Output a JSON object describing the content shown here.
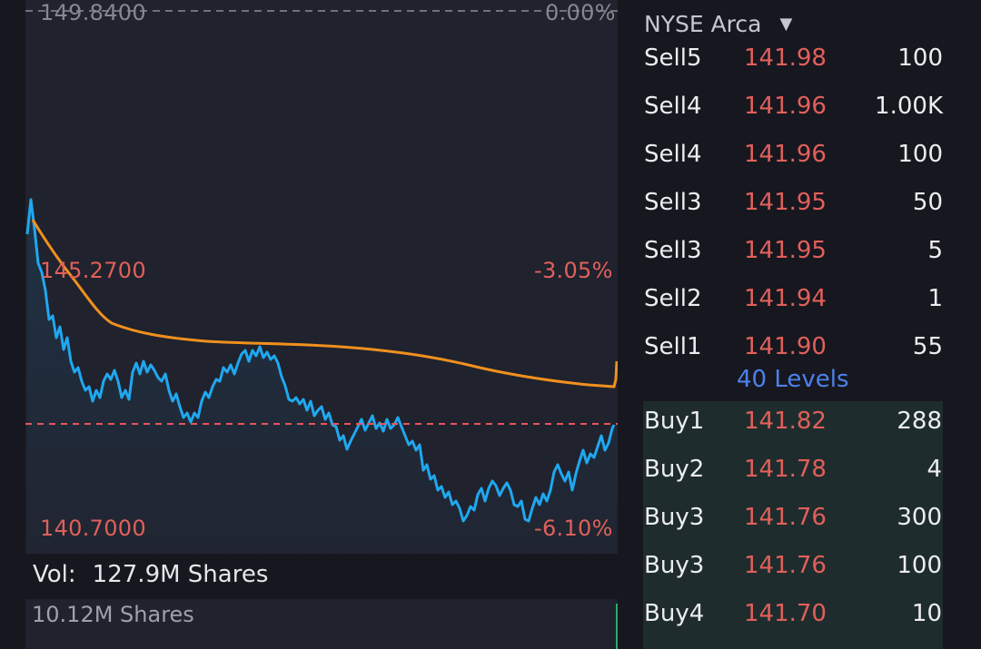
{
  "chart": {
    "ylabels": {
      "top_price": "149.8400",
      "top_pct": "0.00%",
      "mid_price": "145.2700",
      "mid_pct": "-3.05%",
      "low_price": "140.7000",
      "low_pct": "-6.10%"
    },
    "colors": {
      "price_line": "#1fa8f0",
      "avg_line": "#f0901e",
      "ref_line": "#e8555a",
      "down": "#e0605a"
    }
  },
  "volume": {
    "label": "Vol:",
    "value": "127.9M Shares",
    "sub_value": "10.12M Shares"
  },
  "order_book": {
    "exchange": "NYSE Arca",
    "levels_label": "40 Levels",
    "sells": [
      {
        "side": "Sell5",
        "price": "141.98",
        "qty": "100"
      },
      {
        "side": "Sell4",
        "price": "141.96",
        "qty": "1.00K"
      },
      {
        "side": "Sell4",
        "price": "141.96",
        "qty": "100"
      },
      {
        "side": "Sell3",
        "price": "141.95",
        "qty": "50"
      },
      {
        "side": "Sell3",
        "price": "141.95",
        "qty": "5"
      },
      {
        "side": "Sell2",
        "price": "141.94",
        "qty": "1"
      },
      {
        "side": "Sell1",
        "price": "141.90",
        "qty": "55"
      }
    ],
    "buys": [
      {
        "side": "Buy1",
        "price": "141.82",
        "qty": "288"
      },
      {
        "side": "Buy2",
        "price": "141.78",
        "qty": "4"
      },
      {
        "side": "Buy3",
        "price": "141.76",
        "qty": "300"
      },
      {
        "side": "Buy3",
        "price": "141.76",
        "qty": "100"
      },
      {
        "side": "Buy4",
        "price": "141.70",
        "qty": "10"
      }
    ]
  }
}
